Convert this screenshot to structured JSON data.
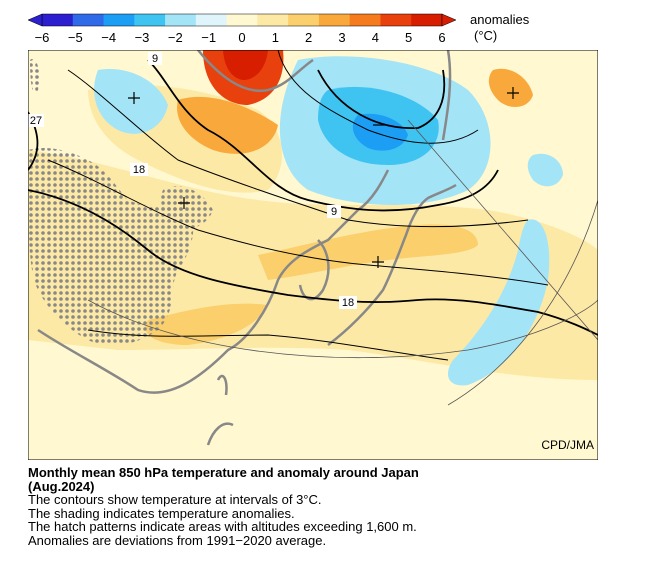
{
  "legend": {
    "title": "anomalies",
    "unit": "(°C)",
    "ticks": [
      "−6",
      "−5",
      "−4",
      "−3",
      "−2",
      "−1",
      "0",
      "1",
      "2",
      "3",
      "4",
      "5",
      "6"
    ],
    "colors": [
      "#2b1fd0",
      "#2f6ae8",
      "#1d9ef5",
      "#3fc4f2",
      "#a4e4f7",
      "#dff5fb",
      "#fff8d0",
      "#fde9a6",
      "#fbcf6c",
      "#f9a93c",
      "#f57b1e",
      "#e8410d",
      "#d71e00"
    ]
  },
  "map": {
    "contour_labels": [
      "9",
      "27",
      "18",
      "9",
      "18"
    ],
    "credit": "CPD/JMA"
  },
  "caption": {
    "title_line1": "Monthly mean 850 hPa temperature and anomaly around Japan",
    "title_line2": "(Aug.2024)",
    "line1": "The contours show temperature at intervals of 3°C.",
    "line2": "The shading indicates temperature anomalies.",
    "line3": "The hatch patterns indicate areas with altitudes exceeding 1,600 m.",
    "line4": "Anomalies are deviations from 1991−2020 average."
  }
}
